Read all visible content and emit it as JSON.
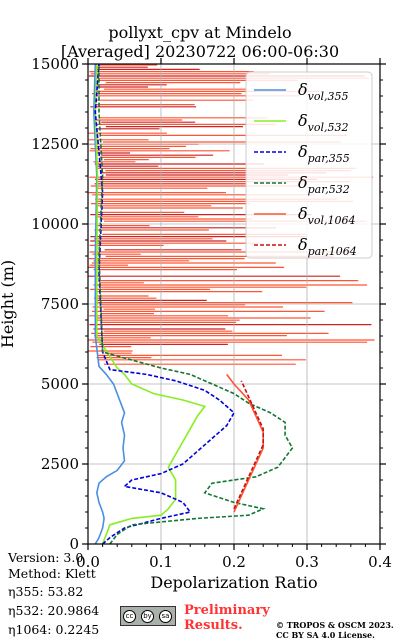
{
  "title_line1": "pollyxt_cpv at Mindelo",
  "title_line2": "[Averaged] 20230722 06:00-06:30",
  "meta": {
    "version": "Version: 3.0",
    "method": "Method: Klett",
    "eta355": "η355:  53.82",
    "eta532": "η532: 20.9864",
    "eta1064": "η1064: 0.2245"
  },
  "footer": {
    "preliminary_line1": "Preliminary",
    "preliminary_line2": "Results.",
    "credit_line1": "© TROPOS & OSCM 2023.",
    "credit_line2": "CC BY SA 4.0 License.",
    "cc_icons": [
      "cc",
      "by",
      "sa"
    ]
  },
  "chart_data": {
    "type": "line",
    "title": "pollyxt_cpv at Mindelo [Averaged] 20230722 06:00-06:30",
    "xlabel": "Depolarization Ratio",
    "ylabel": "Height (m)",
    "xlim": [
      0,
      0.4
    ],
    "ylim": [
      0,
      15000
    ],
    "xticks": [
      "0.0",
      "0.1",
      "0.2",
      "0.3",
      "0.4"
    ],
    "yticks": [
      "0",
      "2500",
      "5000",
      "7500",
      "10000",
      "12500",
      "15000"
    ],
    "grid": true,
    "legend_placement": "top-right",
    "series": [
      {
        "name": "δvol,355",
        "base": "δ",
        "sub": "vol,355",
        "color": "#4a90e2",
        "style": "solid",
        "points": [
          [
            0.01,
            0
          ],
          [
            0.015,
            200
          ],
          [
            0.02,
            500
          ],
          [
            0.022,
            800
          ],
          [
            0.02,
            1000
          ],
          [
            0.015,
            1300
          ],
          [
            0.012,
            1600
          ],
          [
            0.015,
            1900
          ],
          [
            0.025,
            2100
          ],
          [
            0.04,
            2300
          ],
          [
            0.05,
            2600
          ],
          [
            0.048,
            3000
          ],
          [
            0.05,
            3400
          ],
          [
            0.046,
            3800
          ],
          [
            0.05,
            4100
          ],
          [
            0.045,
            4400
          ],
          [
            0.04,
            4700
          ],
          [
            0.035,
            5000
          ],
          [
            0.025,
            5300
          ],
          [
            0.015,
            5550
          ],
          [
            0.01,
            6500
          ],
          [
            0.01,
            9000
          ],
          [
            0.012,
            11500
          ],
          [
            0.008,
            13500
          ],
          [
            0.01,
            15000
          ]
        ]
      },
      {
        "name": "δvol,532",
        "base": "δ",
        "sub": "vol,532",
        "color": "#88ee22",
        "style": "solid",
        "points": [
          [
            0.02,
            0
          ],
          [
            0.025,
            300
          ],
          [
            0.03,
            600
          ],
          [
            0.06,
            800
          ],
          [
            0.1,
            900
          ],
          [
            0.11,
            1100
          ],
          [
            0.12,
            1400
          ],
          [
            0.12,
            1700
          ],
          [
            0.12,
            2000
          ],
          [
            0.11,
            2400
          ],
          [
            0.12,
            2800
          ],
          [
            0.13,
            3200
          ],
          [
            0.14,
            3600
          ],
          [
            0.15,
            4000
          ],
          [
            0.16,
            4300
          ],
          [
            0.13,
            4500
          ],
          [
            0.09,
            4700
          ],
          [
            0.06,
            5000
          ],
          [
            0.05,
            5300
          ],
          [
            0.04,
            5500
          ],
          [
            0.012,
            6500
          ],
          [
            0.012,
            9000
          ],
          [
            0.013,
            11500
          ],
          [
            0.01,
            13500
          ],
          [
            0.012,
            15000
          ]
        ]
      },
      {
        "name": "δpar,355",
        "base": "δ",
        "sub": "par,355",
        "color": "#0000dd",
        "style": "dashed",
        "points": [
          [
            0.02,
            0
          ],
          [
            0.03,
            200
          ],
          [
            0.05,
            500
          ],
          [
            0.1,
            800
          ],
          [
            0.14,
            1000
          ],
          [
            0.13,
            1300
          ],
          [
            0.1,
            1600
          ],
          [
            0.05,
            1800
          ],
          [
            0.06,
            2000
          ],
          [
            0.1,
            2200
          ],
          [
            0.13,
            2500
          ],
          [
            0.15,
            2900
          ],
          [
            0.17,
            3300
          ],
          [
            0.19,
            3700
          ],
          [
            0.2,
            4100
          ],
          [
            0.18,
            4500
          ],
          [
            0.16,
            4800
          ],
          [
            0.12,
            5100
          ],
          [
            0.08,
            5300
          ],
          [
            0.03,
            5450
          ],
          [
            0.02,
            6000
          ],
          [
            0.015,
            8500
          ],
          [
            0.02,
            11000
          ],
          [
            0.01,
            13500
          ],
          [
            0.015,
            15000
          ]
        ]
      },
      {
        "name": "δpar,532",
        "base": "δ",
        "sub": "par,532",
        "color": "#117733",
        "style": "dashed",
        "points": [
          [
            0.03,
            0
          ],
          [
            0.04,
            300
          ],
          [
            0.06,
            600
          ],
          [
            0.15,
            800
          ],
          [
            0.22,
            900
          ],
          [
            0.24,
            1100
          ],
          [
            0.2,
            1300
          ],
          [
            0.16,
            1600
          ],
          [
            0.17,
            1900
          ],
          [
            0.23,
            2100
          ],
          [
            0.26,
            2400
          ],
          [
            0.27,
            2700
          ],
          [
            0.28,
            3000
          ],
          [
            0.27,
            3400
          ],
          [
            0.27,
            3800
          ],
          [
            0.25,
            4100
          ],
          [
            0.22,
            4400
          ],
          [
            0.2,
            4700
          ],
          [
            0.17,
            5000
          ],
          [
            0.14,
            5300
          ],
          [
            0.1,
            5500
          ],
          [
            0.02,
            6000
          ],
          [
            0.015,
            9000
          ],
          [
            0.02,
            11500
          ],
          [
            0.015,
            13500
          ],
          [
            0.015,
            15000
          ]
        ]
      },
      {
        "name": "δvol,1064",
        "base": "δ",
        "sub": "vol,1064",
        "color": "#ff5533",
        "style": "solid",
        "points": [
          [
            0.2,
            1000
          ],
          [
            0.21,
            1500
          ],
          [
            0.22,
            2000
          ],
          [
            0.23,
            2500
          ],
          [
            0.24,
            3000
          ],
          [
            0.24,
            3500
          ],
          [
            0.23,
            4000
          ],
          [
            0.22,
            4500
          ],
          [
            0.2,
            5000
          ],
          [
            0.19,
            5300
          ]
        ]
      },
      {
        "name": "δpar,1064",
        "base": "δ",
        "sub": "par,1064",
        "color": "#cc1111",
        "style": "dashed",
        "points": [
          [
            0.2,
            1100
          ],
          [
            0.21,
            1600
          ],
          [
            0.22,
            2100
          ],
          [
            0.23,
            2600
          ],
          [
            0.24,
            3100
          ],
          [
            0.24,
            3600
          ],
          [
            0.23,
            4100
          ],
          [
            0.22,
            4600
          ],
          [
            0.21,
            5100
          ]
        ]
      }
    ]
  }
}
